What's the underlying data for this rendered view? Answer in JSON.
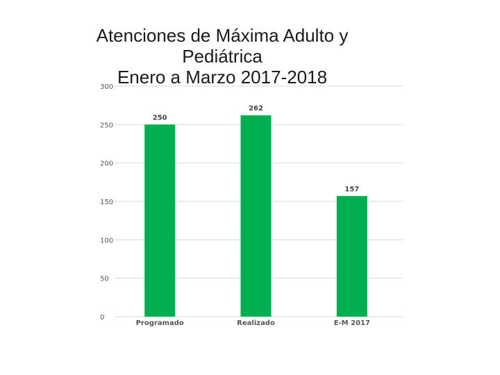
{
  "slide": {
    "title_lines": [
      "Atenciones de Máxima Adulto y",
      "Pediátrica",
      "Enero a Marzo 2017-2018"
    ]
  },
  "chart_data": {
    "type": "bar",
    "title": "Atenciones de Máxima Adulto y Pediátrica Enero a Marzo 2017-2018",
    "categories": [
      "Programado",
      "Realizado",
      "E-M 2017"
    ],
    "values": [
      250,
      262,
      157
    ],
    "data_labels": [
      "250",
      "262",
      "157"
    ],
    "y_ticks": [
      0,
      50,
      100,
      150,
      200,
      250,
      300
    ],
    "ylim": [
      0,
      300
    ],
    "xlabel": "",
    "ylabel": "",
    "grid": true,
    "bar_color": "#00b050",
    "grid_color": "#d9d9d9",
    "legend": "none"
  }
}
